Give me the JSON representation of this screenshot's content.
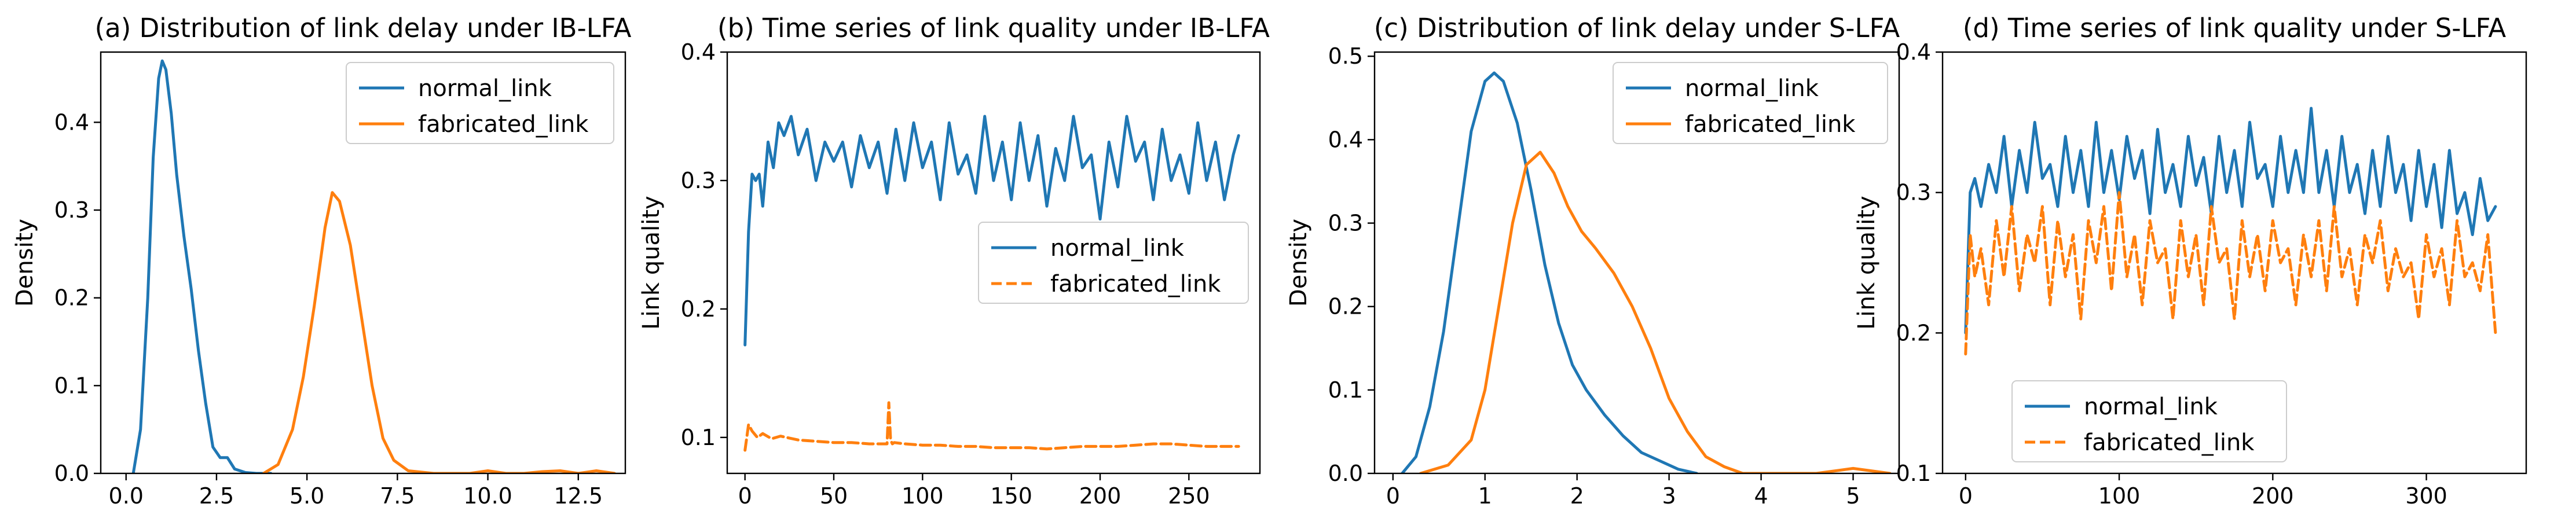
{
  "figure": {
    "colors": {
      "normal": "#1f77b4",
      "fabricated": "#ff7f0e"
    }
  },
  "chart_data": [
    {
      "type": "line",
      "title": "(a) Distribution of link delay under IB-LFA",
      "xlabel": "",
      "ylabel": "Density",
      "xlim": [
        -0.7,
        13.8
      ],
      "ylim": [
        0,
        0.48
      ],
      "xticks": [
        0,
        2.5,
        5,
        7.5,
        10,
        12.5
      ],
      "xtick_labels": [
        "0.0",
        "2.5",
        "5.0",
        "7.5",
        "10.0",
        "12.5"
      ],
      "yticks": [
        0,
        0.1,
        0.2,
        0.3,
        0.4
      ],
      "ytick_labels": [
        "0.0",
        "0.1",
        "0.2",
        "0.3",
        "0.4"
      ],
      "legend_position": "top-right",
      "grid": false,
      "series": [
        {
          "name": "normal_link",
          "color": "#1f77b4",
          "style": "solid",
          "x": [
            0.2,
            0.4,
            0.6,
            0.75,
            0.9,
            1.0,
            1.1,
            1.25,
            1.4,
            1.6,
            1.8,
            2.0,
            2.2,
            2.4,
            2.6,
            2.8,
            3.0,
            3.3,
            3.6,
            4.0
          ],
          "y": [
            0.0,
            0.05,
            0.2,
            0.36,
            0.45,
            0.47,
            0.46,
            0.41,
            0.34,
            0.27,
            0.21,
            0.14,
            0.08,
            0.03,
            0.018,
            0.018,
            0.005,
            0.001,
            0.0,
            0.0
          ]
        },
        {
          "name": "fabricated_link",
          "color": "#ff7f0e",
          "style": "solid",
          "x": [
            3.8,
            4.2,
            4.6,
            4.9,
            5.2,
            5.5,
            5.7,
            5.9,
            6.2,
            6.5,
            6.8,
            7.1,
            7.4,
            7.8,
            8.5,
            9.5,
            10.0,
            10.5,
            11.0,
            11.5,
            12.0,
            12.5,
            13.0,
            13.5
          ],
          "y": [
            0.0,
            0.01,
            0.05,
            0.11,
            0.19,
            0.28,
            0.32,
            0.31,
            0.26,
            0.18,
            0.1,
            0.04,
            0.015,
            0.003,
            0.0,
            0.0,
            0.003,
            0.0,
            0.0,
            0.002,
            0.003,
            0.0,
            0.003,
            0.0
          ]
        }
      ]
    },
    {
      "type": "line",
      "title": "(b) Time series of link quality under IB-LFA",
      "xlabel": "",
      "ylabel": "Link quality",
      "xlim": [
        -10,
        290
      ],
      "ylim": [
        0.072,
        0.4
      ],
      "xticks": [
        0,
        50,
        100,
        150,
        200,
        250
      ],
      "xtick_labels": [
        "0",
        "50",
        "100",
        "150",
        "200",
        "250"
      ],
      "yticks": [
        0.1,
        0.2,
        0.3,
        0.4
      ],
      "ytick_labels": [
        "0.1",
        "0.2",
        "0.3",
        "0.4"
      ],
      "legend_position": "center-right",
      "grid": false,
      "series": [
        {
          "name": "normal_link",
          "color": "#1f77b4",
          "style": "solid",
          "x": [
            0,
            2,
            4,
            6,
            8,
            10,
            13,
            16,
            19,
            22,
            26,
            30,
            35,
            40,
            45,
            50,
            55,
            60,
            65,
            70,
            75,
            80,
            85,
            90,
            95,
            100,
            105,
            110,
            115,
            120,
            125,
            130,
            135,
            140,
            145,
            150,
            155,
            160,
            165,
            170,
            175,
            180,
            185,
            190,
            195,
            200,
            205,
            210,
            215,
            220,
            225,
            230,
            235,
            240,
            245,
            250,
            255,
            260,
            265,
            270,
            275,
            278
          ],
          "y": [
            0.172,
            0.26,
            0.305,
            0.3,
            0.305,
            0.28,
            0.33,
            0.31,
            0.345,
            0.335,
            0.35,
            0.32,
            0.34,
            0.3,
            0.33,
            0.315,
            0.33,
            0.295,
            0.335,
            0.31,
            0.33,
            0.29,
            0.34,
            0.3,
            0.345,
            0.31,
            0.33,
            0.285,
            0.345,
            0.305,
            0.32,
            0.29,
            0.35,
            0.3,
            0.33,
            0.285,
            0.345,
            0.3,
            0.335,
            0.28,
            0.325,
            0.3,
            0.35,
            0.31,
            0.32,
            0.27,
            0.33,
            0.295,
            0.35,
            0.315,
            0.33,
            0.285,
            0.34,
            0.3,
            0.32,
            0.29,
            0.345,
            0.3,
            0.33,
            0.285,
            0.32,
            0.335
          ]
        },
        {
          "name": "fabricated_link",
          "color": "#ff7f0e",
          "style": "dashed",
          "x": [
            0,
            2,
            4,
            7,
            10,
            15,
            20,
            30,
            40,
            50,
            60,
            70,
            80,
            81,
            82,
            83,
            84,
            90,
            100,
            110,
            120,
            130,
            140,
            150,
            160,
            170,
            180,
            190,
            200,
            210,
            220,
            230,
            240,
            250,
            260,
            270,
            278
          ],
          "y": [
            0.09,
            0.11,
            0.105,
            0.1,
            0.103,
            0.099,
            0.101,
            0.098,
            0.097,
            0.096,
            0.096,
            0.095,
            0.095,
            0.127,
            0.098,
            0.095,
            0.096,
            0.095,
            0.094,
            0.094,
            0.093,
            0.093,
            0.092,
            0.092,
            0.092,
            0.091,
            0.092,
            0.093,
            0.093,
            0.093,
            0.094,
            0.095,
            0.095,
            0.094,
            0.093,
            0.093,
            0.093
          ]
        }
      ]
    },
    {
      "type": "line",
      "title": "(c) Distribution of link delay under S-LFA",
      "xlabel": "",
      "ylabel": "Density",
      "xlim": [
        -0.2,
        5.5
      ],
      "ylim": [
        0,
        0.505
      ],
      "xticks": [
        0,
        1,
        2,
        3,
        4,
        5
      ],
      "xtick_labels": [
        "0",
        "1",
        "2",
        "3",
        "4",
        "5"
      ],
      "yticks": [
        0,
        0.1,
        0.2,
        0.3,
        0.4,
        0.5
      ],
      "ytick_labels": [
        "0.0",
        "0.1",
        "0.2",
        "0.3",
        "0.4",
        "0.5"
      ],
      "legend_position": "top-right",
      "grid": false,
      "series": [
        {
          "name": "normal_link",
          "color": "#1f77b4",
          "style": "solid",
          "x": [
            0.1,
            0.25,
            0.4,
            0.55,
            0.7,
            0.85,
            1.0,
            1.1,
            1.2,
            1.35,
            1.5,
            1.65,
            1.8,
            1.95,
            2.1,
            2.3,
            2.5,
            2.7,
            2.9,
            3.1,
            3.3
          ],
          "y": [
            0.0,
            0.02,
            0.08,
            0.17,
            0.29,
            0.41,
            0.47,
            0.48,
            0.47,
            0.42,
            0.34,
            0.25,
            0.18,
            0.13,
            0.1,
            0.07,
            0.045,
            0.025,
            0.015,
            0.005,
            0.0
          ]
        },
        {
          "name": "fabricated_link",
          "color": "#ff7f0e",
          "style": "solid",
          "x": [
            0.3,
            0.6,
            0.85,
            1.0,
            1.15,
            1.3,
            1.45,
            1.6,
            1.75,
            1.9,
            2.05,
            2.2,
            2.4,
            2.6,
            2.8,
            3.0,
            3.2,
            3.4,
            3.6,
            3.8,
            4.0,
            4.6,
            5.0,
            5.4
          ],
          "y": [
            0.0,
            0.01,
            0.04,
            0.1,
            0.2,
            0.3,
            0.37,
            0.385,
            0.36,
            0.32,
            0.29,
            0.27,
            0.24,
            0.2,
            0.15,
            0.09,
            0.05,
            0.02,
            0.008,
            0.0,
            0.0,
            0.0,
            0.006,
            0.0
          ]
        }
      ]
    },
    {
      "type": "line",
      "title": "(d) Time series of link quality under S-LFA",
      "xlabel": "",
      "ylabel": "Link quality",
      "xlim": [
        -15,
        365
      ],
      "ylim": [
        0.1,
        0.4
      ],
      "xticks": [
        0,
        100,
        200,
        300
      ],
      "xtick_labels": [
        "0",
        "100",
        "200",
        "300"
      ],
      "yticks": [
        0.1,
        0.2,
        0.3,
        0.4
      ],
      "ytick_labels": [
        "0.1",
        "0.2",
        "0.3",
        "0.4"
      ],
      "legend_position": "bottom-left",
      "grid": false,
      "series": [
        {
          "name": "normal_link",
          "color": "#1f77b4",
          "style": "solid",
          "x": [
            0,
            3,
            6,
            10,
            15,
            20,
            25,
            30,
            35,
            40,
            45,
            50,
            55,
            60,
            65,
            70,
            75,
            80,
            85,
            90,
            95,
            100,
            105,
            110,
            115,
            120,
            125,
            130,
            135,
            140,
            145,
            150,
            155,
            160,
            165,
            170,
            175,
            180,
            185,
            190,
            195,
            200,
            205,
            210,
            215,
            220,
            225,
            230,
            235,
            240,
            245,
            250,
            255,
            260,
            265,
            270,
            275,
            280,
            285,
            290,
            295,
            300,
            305,
            310,
            315,
            320,
            325,
            330,
            335,
            340,
            345
          ],
          "y": [
            0.2,
            0.3,
            0.31,
            0.29,
            0.32,
            0.3,
            0.34,
            0.29,
            0.33,
            0.3,
            0.35,
            0.31,
            0.32,
            0.29,
            0.34,
            0.3,
            0.33,
            0.29,
            0.35,
            0.3,
            0.33,
            0.295,
            0.34,
            0.31,
            0.33,
            0.285,
            0.345,
            0.3,
            0.32,
            0.29,
            0.34,
            0.305,
            0.325,
            0.285,
            0.34,
            0.3,
            0.33,
            0.29,
            0.35,
            0.31,
            0.32,
            0.29,
            0.34,
            0.3,
            0.33,
            0.3,
            0.36,
            0.3,
            0.33,
            0.29,
            0.34,
            0.3,
            0.32,
            0.285,
            0.33,
            0.29,
            0.34,
            0.3,
            0.32,
            0.28,
            0.33,
            0.29,
            0.32,
            0.275,
            0.33,
            0.285,
            0.3,
            0.27,
            0.31,
            0.28,
            0.29
          ]
        },
        {
          "name": "fabricated_link",
          "color": "#ff7f0e",
          "style": "dashed",
          "x": [
            0,
            3,
            6,
            10,
            15,
            20,
            25,
            30,
            35,
            40,
            45,
            50,
            55,
            60,
            65,
            70,
            75,
            80,
            85,
            90,
            95,
            100,
            105,
            110,
            115,
            120,
            125,
            130,
            135,
            140,
            145,
            150,
            155,
            160,
            165,
            170,
            175,
            180,
            185,
            190,
            195,
            200,
            205,
            210,
            215,
            220,
            225,
            230,
            235,
            240,
            245,
            250,
            255,
            260,
            265,
            270,
            275,
            280,
            285,
            290,
            295,
            300,
            305,
            310,
            315,
            320,
            325,
            330,
            335,
            340,
            345
          ],
          "y": [
            0.185,
            0.27,
            0.24,
            0.26,
            0.22,
            0.28,
            0.24,
            0.29,
            0.23,
            0.27,
            0.25,
            0.29,
            0.22,
            0.28,
            0.24,
            0.27,
            0.21,
            0.28,
            0.25,
            0.29,
            0.23,
            0.3,
            0.24,
            0.27,
            0.22,
            0.28,
            0.25,
            0.26,
            0.21,
            0.28,
            0.24,
            0.27,
            0.22,
            0.29,
            0.25,
            0.26,
            0.21,
            0.28,
            0.24,
            0.27,
            0.23,
            0.28,
            0.25,
            0.26,
            0.22,
            0.27,
            0.24,
            0.28,
            0.23,
            0.29,
            0.24,
            0.26,
            0.22,
            0.27,
            0.25,
            0.28,
            0.23,
            0.26,
            0.24,
            0.25,
            0.21,
            0.27,
            0.24,
            0.26,
            0.22,
            0.28,
            0.24,
            0.25,
            0.23,
            0.27,
            0.2
          ]
        }
      ]
    }
  ]
}
